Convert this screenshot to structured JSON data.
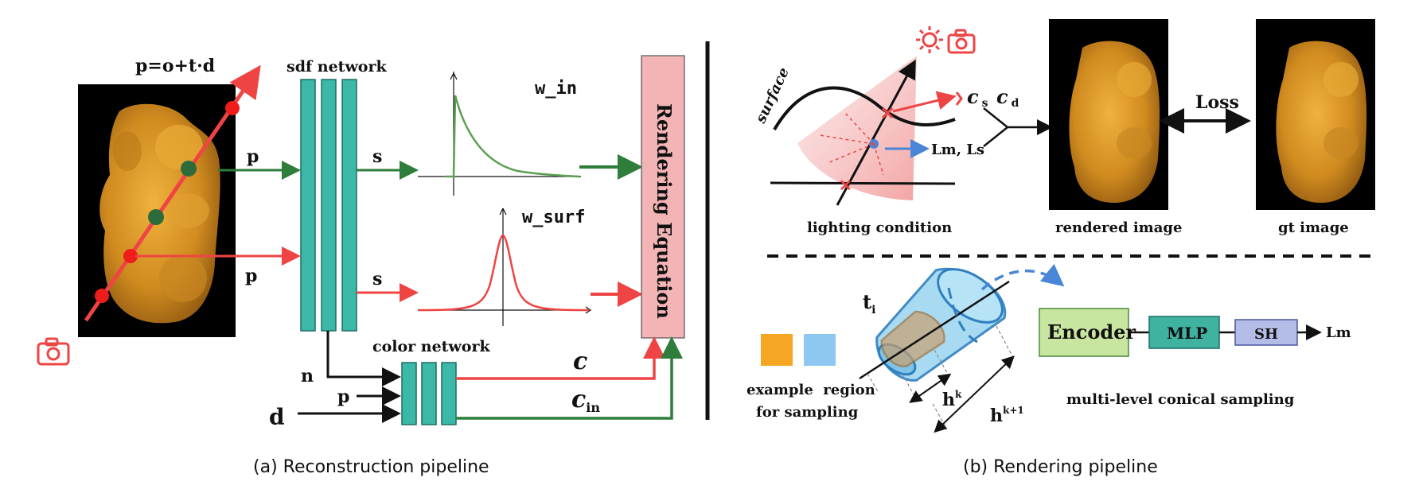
{
  "left": {
    "ray_equation": "p=o+t·d",
    "sdf_network": "sdf network",
    "color_network": "color network",
    "input_p_top": "p",
    "input_p_bottom": "p",
    "output_s_top": "s",
    "output_s_bottom": "s",
    "w_in_label": "w_in",
    "w_surf_label": "w_surf",
    "rendering_equation": "Rendering Equation",
    "n_label": "n",
    "p_label": "p",
    "d_label": "d",
    "c_label": "c",
    "c_in_main": "c",
    "c_in_sub": "in",
    "caption": "(a) Reconstruction pipeline"
  },
  "right": {
    "surface_label": "surface",
    "c_s_main": "c",
    "c_s_sub": "s",
    "c_d_main": "c",
    "c_d_sub": "d",
    "lm_ls": "Lm, Ls",
    "lighting_condition": "lighting condition",
    "rendered_image": "rendered image",
    "gt_image": "gt image",
    "loss": "Loss",
    "t_main": "t",
    "t_sub": "i",
    "hk_main": "h",
    "hk_sup": "k",
    "hk1_main": "h",
    "hk1_sup": "k+1",
    "example_region_1": "example  region",
    "example_region_2": "for sampling",
    "encoder": "Encoder",
    "mlp": "MLP",
    "sh": "SH",
    "lm": "Lm",
    "conical_sampling": "multi-level conical sampling",
    "caption": "(b) Rendering pipeline"
  },
  "colors": {
    "teal": "#3bb8a8",
    "green": "#2e7d3a",
    "red": "#ef4444",
    "pink_box": "#f2b4b4",
    "encoder_fill": "#c8e6a0",
    "mlp_fill": "#3fb3a0",
    "sh_fill": "#b3bde8",
    "orange_swatch": "#f5a623",
    "blue_swatch": "#8ec7ef",
    "gummy": "#d9962a"
  }
}
